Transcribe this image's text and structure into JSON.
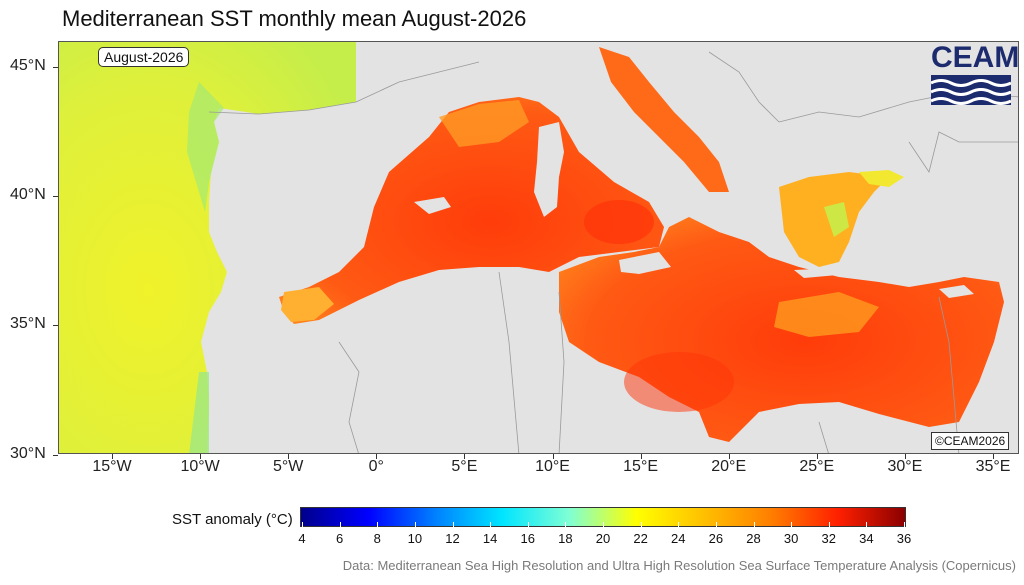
{
  "title": "Mediterranean SST monthly mean August-2026",
  "date_badge": "August-2026",
  "copyright_badge": "©CEAM2026",
  "logo": {
    "text": "CEAM",
    "colors": {
      "text": "#1c2a6e",
      "waves": "#1c2a6e"
    }
  },
  "axes": {
    "y_ticks": [
      "45°N",
      "40°N",
      "35°N",
      "30°N"
    ],
    "x_ticks": [
      "15°W",
      "10°W",
      "5°W",
      "0°",
      "5°E",
      "10°E",
      "15°E",
      "20°E",
      "25°E",
      "30°E",
      "35°E"
    ]
  },
  "legend": {
    "title": "SST anomaly (°C)",
    "labels": [
      "4",
      "6",
      "8",
      "10",
      "12",
      "14",
      "16",
      "18",
      "20",
      "22",
      "24",
      "26",
      "28",
      "30",
      "32",
      "34",
      "36"
    ],
    "gradient_colors": [
      "#00008b",
      "#0000ff",
      "#0080ff",
      "#00e5ff",
      "#7fffd4",
      "#ffff00",
      "#ffc000",
      "#ff7f00",
      "#ff2000",
      "#8b0000"
    ]
  },
  "source_note": "Data: Mediterranean Sea High Resolution and Ultra High Resolution Sea Surface Temperature Analysis (Copernicus)",
  "colors": {
    "land": "#e3e3e3",
    "atlantic": "#d8f23a",
    "mediterranean": "#ff5a14",
    "aegean": "#ffb020"
  }
}
